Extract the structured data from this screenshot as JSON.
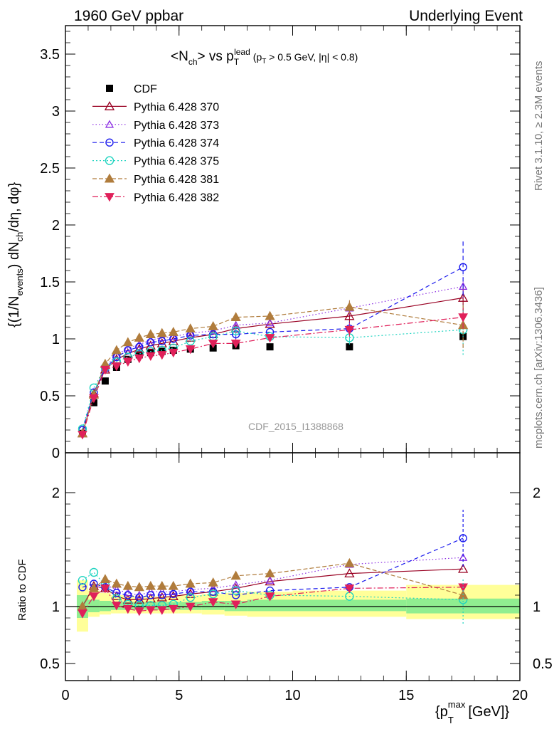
{
  "header": {
    "left": "1960 GeV ppbar",
    "right": "Underlying Event"
  },
  "side_labels": {
    "rivet": "Rivet 3.1.10, ≥ 2.3M events",
    "mcplots": "mcplots.cern.ch [arXiv:1306.3436]"
  },
  "watermark": "CDF_2015_I1388868",
  "colors": {
    "CDF": "#000000",
    "370": "#990022",
    "373": "#8a2be2",
    "374": "#1a1aee",
    "375": "#1fd4c0",
    "381": "#b07c3c",
    "382": "#e0205a",
    "band_inner": "#90ee90",
    "band_outer": "#ffff99"
  },
  "chart_data": [
    {
      "type": "scatter",
      "title": "<N_ch> vs p_T^lead (p_T > 0.5 GeV, |η| < 0.8)",
      "ylabel": "{(1/N_events) dN_ch/dη, dφ}",
      "xlabel": "{p_T^max [GeV]}",
      "xlim": [
        0,
        20
      ],
      "ylim": [
        0,
        3.75
      ],
      "yticks": [
        "0",
        "0.5",
        "1",
        "1.5",
        "2",
        "2.5",
        "3",
        "3.5"
      ],
      "xticks": [
        "0",
        "5",
        "10",
        "15",
        "20"
      ],
      "legend_position": "top-left",
      "x": [
        0.75,
        1.25,
        1.75,
        2.25,
        2.75,
        3.25,
        3.75,
        4.25,
        4.75,
        5.5,
        6.5,
        7.5,
        9.0,
        12.5,
        17.5
      ],
      "series": [
        {
          "name": "CDF",
          "key": "CDF",
          "values": [
            0.17,
            0.44,
            0.63,
            0.75,
            0.82,
            0.86,
            0.88,
            0.89,
            0.9,
            0.91,
            0.92,
            0.94,
            0.93,
            0.93,
            1.02
          ]
        },
        {
          "name": "Pythia 6.428 370",
          "key": "370",
          "values": [
            0.17,
            0.52,
            0.73,
            0.82,
            0.87,
            0.91,
            0.94,
            0.96,
            0.98,
            1.01,
            1.04,
            1.09,
            1.13,
            1.2,
            1.36
          ],
          "err_last": 0.12
        },
        {
          "name": "Pythia 6.428 373",
          "key": "373",
          "values": [
            0.17,
            0.51,
            0.75,
            0.86,
            0.92,
            0.95,
            0.99,
            1.01,
            1.02,
            1.05,
            1.07,
            1.12,
            1.14,
            1.27,
            1.46
          ],
          "err_last": 0.1
        },
        {
          "name": "Pythia 6.428 374",
          "key": "374",
          "values": [
            0.2,
            0.53,
            0.74,
            0.84,
            0.9,
            0.93,
            0.97,
            0.98,
            1.0,
            1.03,
            1.04,
            1.04,
            1.06,
            1.09,
            1.63
          ],
          "err_last": 0.25
        },
        {
          "name": "Pythia 6.428 375",
          "key": "375",
          "values": [
            0.21,
            0.57,
            0.75,
            0.8,
            0.84,
            0.87,
            0.89,
            0.9,
            0.92,
            0.98,
            1.02,
            1.07,
            1.02,
            1.01,
            1.08
          ],
          "err_last": 0.22
        },
        {
          "name": "Pythia 6.428 381",
          "key": "381",
          "values": [
            0.17,
            0.51,
            0.78,
            0.9,
            0.97,
            1.01,
            1.04,
            1.05,
            1.06,
            1.09,
            1.11,
            1.19,
            1.2,
            1.28,
            1.12
          ],
          "err_last": 0.2
        },
        {
          "name": "Pythia 6.428 382",
          "key": "382",
          "values": [
            0.16,
            0.48,
            0.73,
            0.76,
            0.8,
            0.83,
            0.85,
            0.86,
            0.88,
            0.91,
            0.96,
            0.96,
            1.01,
            1.08,
            1.19
          ],
          "err_last": 0.1
        }
      ]
    },
    {
      "type": "scatter",
      "ylabel": "Ratio to CDF",
      "xlabel": "{p_T^max [GeV]}",
      "xlim": [
        0,
        20
      ],
      "ylim": [
        0.35,
        2.35
      ],
      "yticks": [
        "0.5",
        "1",
        "2"
      ],
      "bins": [
        [
          0.5,
          1.0
        ],
        [
          1.0,
          1.5
        ],
        [
          1.5,
          2.0
        ],
        [
          2.0,
          2.5
        ],
        [
          2.5,
          3.0
        ],
        [
          3.0,
          3.5
        ],
        [
          3.5,
          4.0
        ],
        [
          4.0,
          4.5
        ],
        [
          4.5,
          5.0
        ],
        [
          5.0,
          6.0
        ],
        [
          6.0,
          7.0
        ],
        [
          7.0,
          8.0
        ],
        [
          8.0,
          10.0
        ],
        [
          10.0,
          15.0
        ],
        [
          15.0,
          20.0
        ]
      ],
      "band_inner": [
        [
          0.9,
          1.1
        ],
        [
          0.95,
          1.06
        ],
        [
          0.96,
          1.05
        ],
        [
          0.97,
          1.04
        ],
        [
          0.97,
          1.04
        ],
        [
          0.97,
          1.04
        ],
        [
          0.97,
          1.04
        ],
        [
          0.97,
          1.04
        ],
        [
          0.97,
          1.04
        ],
        [
          0.97,
          1.04
        ],
        [
          0.97,
          1.05
        ],
        [
          0.96,
          1.05
        ],
        [
          0.96,
          1.06
        ],
        [
          0.96,
          1.06
        ],
        [
          0.94,
          1.07
        ]
      ],
      "band_outer": [
        [
          0.78,
          1.23
        ],
        [
          0.91,
          1.14
        ],
        [
          0.93,
          1.12
        ],
        [
          0.94,
          1.1
        ],
        [
          0.94,
          1.1
        ],
        [
          0.94,
          1.09
        ],
        [
          0.94,
          1.09
        ],
        [
          0.94,
          1.09
        ],
        [
          0.94,
          1.09
        ],
        [
          0.94,
          1.1
        ],
        [
          0.93,
          1.11
        ],
        [
          0.92,
          1.12
        ],
        [
          0.91,
          1.13
        ],
        [
          0.91,
          1.14
        ],
        [
          0.89,
          1.19
        ]
      ],
      "x": [
        0.75,
        1.25,
        1.75,
        2.25,
        2.75,
        3.25,
        3.75,
        4.25,
        4.75,
        5.5,
        6.5,
        7.5,
        9.0,
        12.5,
        17.5
      ],
      "series": [
        {
          "name": "Pythia 6.428 370",
          "key": "370",
          "values": [
            1.0,
            1.18,
            1.16,
            1.09,
            1.06,
            1.06,
            1.07,
            1.08,
            1.09,
            1.11,
            1.13,
            1.16,
            1.22,
            1.29,
            1.33
          ]
        },
        {
          "name": "Pythia 6.428 373",
          "key": "373",
          "values": [
            1.0,
            1.16,
            1.19,
            1.15,
            1.12,
            1.1,
            1.13,
            1.13,
            1.13,
            1.15,
            1.16,
            1.19,
            1.23,
            1.37,
            1.43
          ]
        },
        {
          "name": "Pythia 6.428 374",
          "key": "374",
          "values": [
            1.17,
            1.2,
            1.17,
            1.12,
            1.1,
            1.08,
            1.1,
            1.1,
            1.11,
            1.13,
            1.13,
            1.1,
            1.14,
            1.17,
            1.6
          ]
        },
        {
          "name": "Pythia 6.428 375",
          "key": "375",
          "values": [
            1.23,
            1.3,
            1.19,
            1.07,
            1.02,
            1.01,
            1.01,
            1.01,
            1.02,
            1.08,
            1.11,
            1.14,
            1.1,
            1.09,
            1.06
          ]
        },
        {
          "name": "Pythia 6.428 381",
          "key": "381",
          "values": [
            1.0,
            1.16,
            1.24,
            1.2,
            1.18,
            1.17,
            1.18,
            1.18,
            1.18,
            1.2,
            1.21,
            1.27,
            1.29,
            1.38,
            1.1
          ]
        },
        {
          "name": "Pythia 6.428 382",
          "key": "382",
          "values": [
            0.94,
            1.09,
            1.16,
            1.01,
            0.98,
            0.96,
            0.97,
            0.97,
            0.98,
            1.0,
            1.04,
            1.02,
            1.09,
            1.16,
            1.17
          ]
        }
      ]
    }
  ]
}
